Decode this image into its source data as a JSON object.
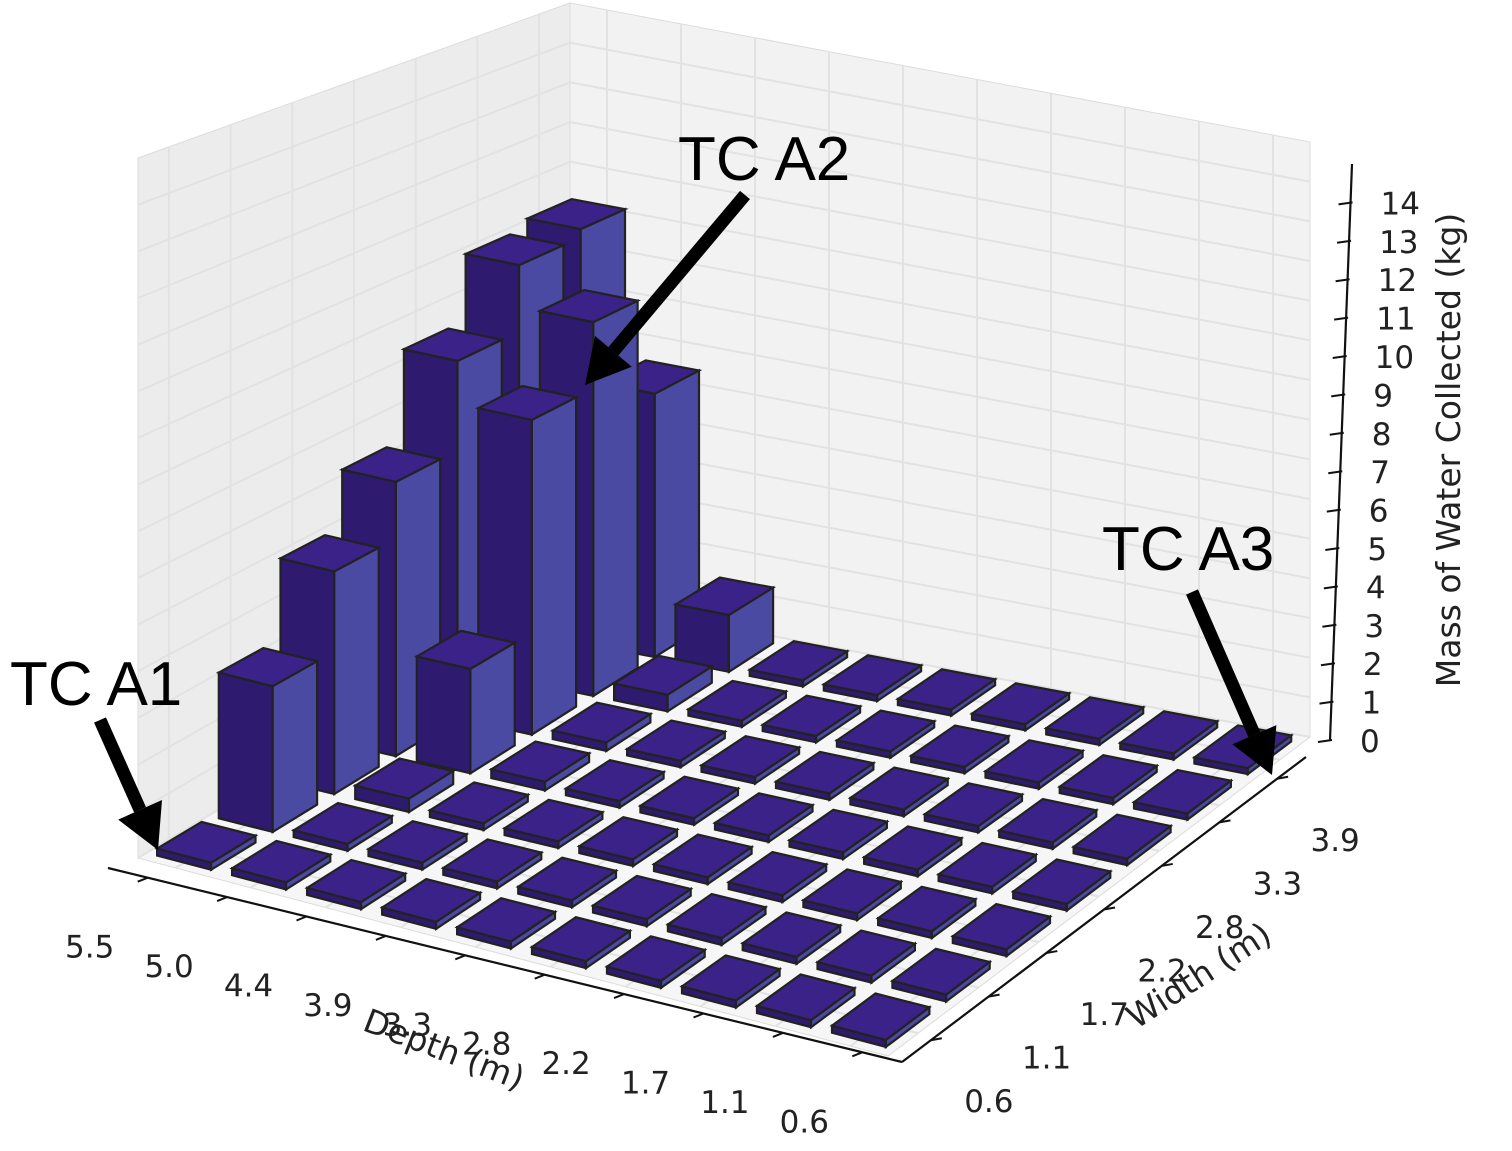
{
  "chart_data": {
    "type": "bar3d",
    "title": "",
    "xlabel": "Depth (m)",
    "ylabel": "Width (m)",
    "zlabel": "Mass of Water Collected (kg)",
    "depth_ticks": [
      "5.5",
      "5.0",
      "4.4",
      "3.9",
      "3.3",
      "2.8",
      "2.2",
      "1.7",
      "1.1",
      "0.6"
    ],
    "width_ticks": [
      "0.6",
      "1.1",
      "1.7",
      "2.2",
      "2.8",
      "3.3",
      "3.9"
    ],
    "z_ticks": [
      "0",
      "1",
      "2",
      "3",
      "4",
      "5",
      "6",
      "7",
      "8",
      "9",
      "10",
      "11",
      "12",
      "13",
      "14"
    ],
    "zlim": [
      0,
      15
    ],
    "grid": true,
    "bar_colors": {
      "top": "#3b2288",
      "front": "#2e1a6e",
      "side": "#4a4aa2",
      "edge": "#222222"
    },
    "bars": [
      {
        "depth": 5.5,
        "width": 0.6,
        "value": 0.1
      },
      {
        "depth": 5.5,
        "width": 1.1,
        "value": 3.2
      },
      {
        "depth": 5.5,
        "width": 1.7,
        "value": 5.0
      },
      {
        "depth": 5.5,
        "width": 2.2,
        "value": 6.3
      },
      {
        "depth": 5.5,
        "width": 2.8,
        "value": 8.4
      },
      {
        "depth": 5.5,
        "width": 3.3,
        "value": 10.0
      },
      {
        "depth": 5.5,
        "width": 3.9,
        "value": 10.2
      },
      {
        "depth": 5.0,
        "width": 2.2,
        "value": 2.4
      },
      {
        "depth": 5.0,
        "width": 2.8,
        "value": 7.4
      },
      {
        "depth": 5.0,
        "width": 3.3,
        "value": 9.0
      },
      {
        "depth": 5.0,
        "width": 3.9,
        "value": 6.5
      },
      {
        "depth": 4.4,
        "width": 3.3,
        "value": 0.4
      },
      {
        "depth": 4.4,
        "width": 3.9,
        "value": 1.4
      },
      {
        "depth": 5.0,
        "width": 1.7,
        "value": 0.3
      },
      {
        "depth": 4.4,
        "width": 2.8,
        "value": 0.2
      },
      {
        "depth": 4.4,
        "width": 2.2,
        "value": 0.2
      },
      {
        "depth": 5.0,
        "width": 1.1,
        "value": 0.15
      }
    ],
    "annotations": [
      {
        "text": "TC A1",
        "depth": 5.5,
        "width": 0.6
      },
      {
        "text": "TC A2",
        "depth": 4.4,
        "width": 3.3
      },
      {
        "text": "TC A3",
        "depth": 0.6,
        "width": 3.9
      }
    ]
  }
}
